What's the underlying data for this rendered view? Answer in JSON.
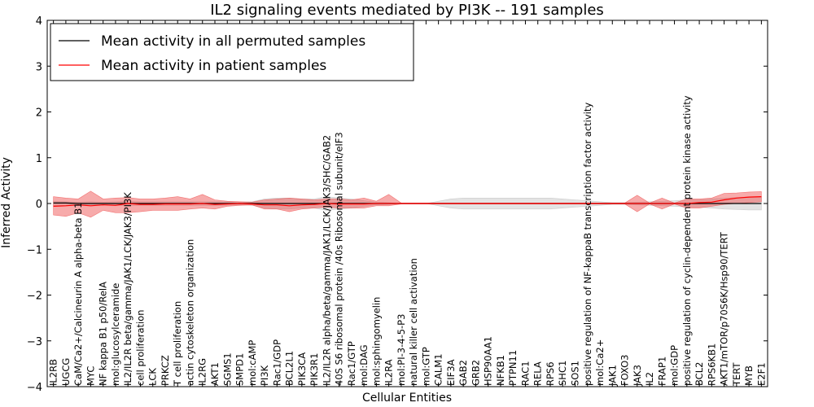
{
  "chart_data": {
    "type": "line",
    "title": "IL2 signaling events mediated by PI3K -- 191 samples",
    "xlabel": "Cellular Entities",
    "ylabel": "Inferred Activity",
    "ylim": [
      -4,
      4
    ],
    "yticks": [
      -4,
      -3,
      -2,
      -1,
      0,
      1,
      2,
      3,
      4
    ],
    "ytick_labels": [
      "−4",
      "−3",
      "−2",
      "−1",
      "0",
      "1",
      "2",
      "3",
      "4"
    ],
    "legend": {
      "placement": "top-left",
      "entries": [
        {
          "label": "Mean activity in all permuted samples",
          "color": "#000000"
        },
        {
          "label": "Mean activity in patient samples",
          "color": "#ff0000"
        }
      ]
    },
    "categories": [
      "IL2RB",
      "UGCG",
      "CaM/Ca2+/Calcineurin A alpha-beta B1",
      "MYC",
      "NF kappa B1 p50/RelA",
      "mol:glucosylceramide",
      "IL2/IL2R beta/gamma/JAK1/LCK/JAK3/PI3K",
      "cell proliferation",
      "LCK",
      "PRKCZ",
      "T cell proliferation",
      "actin cytoskeleton organization",
      "IL2RG",
      "AKT1",
      "SGMS1",
      "SMPD1",
      "mol:cAMP",
      "PI3K",
      "Rac1/GDP",
      "BCL2L1",
      "PIK3CA",
      "PIK3R1",
      "IL2/IL2R alpha/beta/gamma/JAK1/LCK/JAK3/SHC/GAB2",
      "40S S6 ribosomal protein /40s Ribosomal subunit/eIF3",
      "Rac1/GTP",
      "mol:DAG",
      "mol:sphingomyelin",
      "IL2RA",
      "mol:PI-3-4-5-P3",
      "natural killer cell activation",
      "mol:GTP",
      "CALM1",
      "EIF3A",
      "GAB2",
      "GRB2",
      "HSP90AA1",
      "NFKB1",
      "PTPN11",
      "RAC1",
      "RELA",
      "RPS6",
      "SHC1",
      "SOS1",
      "positive regulation of NF-kappaB transcription factor activity",
      "mol:Ca2+",
      "JAK1",
      "FOXO3",
      "JAK3",
      "IL2",
      "FRAP1",
      "mol:GDP",
      "positive regulation of cyclin-dependent protein kinase activity",
      "BCL2",
      "RPS6KB1",
      "AKT1/mTOR/p70S6K/Hsp90/TERT",
      "TERT",
      "MYB",
      "E2F1"
    ],
    "series": [
      {
        "name": "Mean activity in all permuted samples",
        "color": "#000000",
        "values": [
          0.01,
          0.01,
          0.0,
          0.0,
          0.0,
          0.0,
          0.0,
          0.0,
          0.0,
          0.0,
          0.0,
          0.0,
          0.0,
          0.0,
          0.0,
          0.0,
          0.0,
          0.0,
          0.0,
          0.0,
          0.0,
          0.0,
          0.0,
          0.0,
          0.0,
          0.0,
          0.0,
          0.0,
          0.0,
          0.0,
          0.0,
          0.0,
          0.0,
          0.0,
          0.0,
          0.0,
          0.0,
          0.0,
          0.0,
          0.0,
          0.0,
          0.0,
          0.0,
          0.0,
          0.0,
          0.0,
          0.0,
          0.0,
          0.0,
          0.0,
          0.0,
          0.0,
          0.0,
          0.0,
          0.0,
          0.0,
          0.0,
          0.0
        ],
        "band_upper": [
          0.05,
          0.04,
          0.03,
          0.04,
          0.03,
          0.04,
          0.05,
          0.04,
          0.04,
          0.04,
          0.04,
          0.04,
          0.04,
          0.04,
          0.04,
          0.03,
          0.04,
          0.1,
          0.12,
          0.12,
          0.1,
          0.1,
          0.15,
          0.12,
          0.1,
          0.06,
          0.03,
          0.02,
          0.0,
          0.0,
          0.0,
          0.05,
          0.1,
          0.12,
          0.12,
          0.12,
          0.12,
          0.12,
          0.12,
          0.12,
          0.12,
          0.1,
          0.08,
          0.06,
          0.04,
          0.02,
          0.02,
          0.03,
          0.04,
          0.05,
          0.06,
          0.08,
          0.08,
          0.1,
          0.12,
          0.13,
          0.14,
          0.14
        ],
        "band_lower": [
          -0.05,
          -0.04,
          -0.03,
          -0.04,
          -0.03,
          -0.04,
          -0.05,
          -0.04,
          -0.04,
          -0.04,
          -0.04,
          -0.04,
          -0.04,
          -0.04,
          -0.04,
          -0.03,
          -0.04,
          -0.1,
          -0.12,
          -0.12,
          -0.1,
          -0.1,
          -0.15,
          -0.12,
          -0.1,
          -0.06,
          -0.03,
          -0.02,
          0.0,
          0.0,
          0.0,
          -0.05,
          -0.1,
          -0.12,
          -0.12,
          -0.12,
          -0.12,
          -0.12,
          -0.12,
          -0.12,
          -0.12,
          -0.1,
          -0.08,
          -0.06,
          -0.04,
          -0.02,
          -0.02,
          -0.03,
          -0.04,
          -0.05,
          -0.06,
          -0.08,
          -0.08,
          -0.1,
          -0.12,
          -0.13,
          -0.14,
          -0.14
        ]
      },
      {
        "name": "Mean activity in patient samples",
        "color": "#ff0000",
        "values": [
          -0.06,
          -0.05,
          -0.03,
          -0.05,
          -0.03,
          -0.04,
          0.0,
          -0.02,
          -0.02,
          -0.01,
          -0.01,
          -0.01,
          0.0,
          -0.02,
          -0.01,
          0.0,
          -0.01,
          -0.03,
          -0.03,
          -0.05,
          -0.03,
          -0.02,
          0.0,
          -0.01,
          -0.01,
          -0.01,
          0.0,
          0.0,
          0.0,
          0.0,
          0.0,
          0.0,
          0.0,
          0.0,
          0.0,
          0.0,
          0.0,
          0.0,
          0.0,
          0.0,
          0.0,
          0.0,
          0.0,
          0.0,
          0.0,
          0.0,
          0.0,
          0.0,
          0.0,
          0.0,
          0.0,
          0.0,
          0.02,
          0.03,
          0.08,
          0.12,
          0.14,
          0.15
        ],
        "band_upper": [
          0.15,
          0.12,
          0.1,
          0.27,
          0.1,
          0.12,
          0.13,
          0.1,
          0.1,
          0.12,
          0.15,
          0.1,
          0.2,
          0.08,
          0.05,
          0.04,
          0.03,
          0.08,
          0.1,
          0.12,
          0.1,
          0.08,
          0.1,
          0.1,
          0.08,
          0.12,
          0.05,
          0.2,
          0.01,
          0.01,
          0.01,
          0.01,
          0.01,
          0.01,
          0.01,
          0.01,
          0.01,
          0.01,
          0.01,
          0.01,
          0.01,
          0.01,
          0.01,
          0.01,
          0.01,
          0.01,
          0.01,
          0.18,
          0.01,
          0.12,
          0.01,
          0.1,
          0.1,
          0.12,
          0.22,
          0.23,
          0.25,
          0.26
        ],
        "band_lower": [
          -0.25,
          -0.28,
          -0.2,
          -0.3,
          -0.15,
          -0.2,
          -0.2,
          -0.18,
          -0.15,
          -0.15,
          -0.15,
          -0.12,
          -0.1,
          -0.12,
          -0.06,
          -0.04,
          -0.03,
          -0.12,
          -0.12,
          -0.18,
          -0.12,
          -0.1,
          -0.08,
          -0.1,
          -0.1,
          -0.1,
          -0.05,
          -0.05,
          -0.01,
          -0.01,
          -0.01,
          -0.01,
          -0.01,
          -0.01,
          -0.01,
          -0.01,
          -0.01,
          -0.01,
          -0.01,
          -0.01,
          -0.01,
          -0.01,
          -0.01,
          -0.01,
          -0.01,
          -0.01,
          -0.01,
          -0.18,
          -0.01,
          -0.12,
          -0.01,
          -0.1,
          -0.1,
          -0.06,
          -0.02,
          0.0,
          0.02,
          0.04
        ]
      }
    ]
  }
}
